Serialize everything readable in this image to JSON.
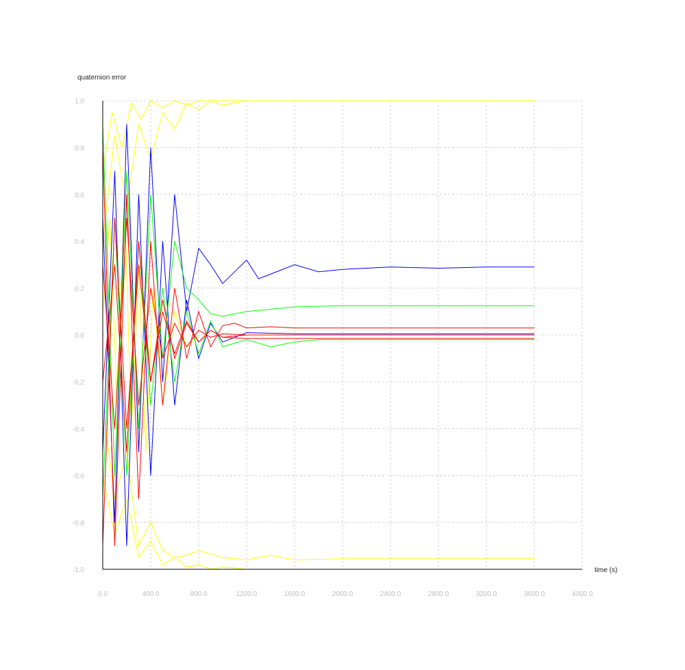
{
  "chart_data": {
    "type": "line",
    "ylabel": "quaternion error",
    "xlabel": "time (s)",
    "xlim": [
      0,
      4000
    ],
    "ylim": [
      -1,
      1
    ],
    "x_ticks": [
      0,
      400,
      800,
      1200,
      1600,
      2000,
      2400,
      2800,
      3200,
      3600,
      4000
    ],
    "x_tick_labels": [
      "0.0",
      "400.0",
      "800.0",
      "1200.0",
      "1600.0",
      "2000.0",
      "2400.0",
      "2800.0",
      "3200.0",
      "3600.0",
      "4000.0"
    ],
    "y_ticks": [
      -1,
      -0.8,
      -0.6,
      -0.4,
      -0.2,
      0,
      0.2,
      0.4,
      0.6,
      0.8,
      1
    ],
    "y_tick_labels": [
      "-1.0",
      "-0.8",
      "-0.6",
      "-0.4",
      "-0.2",
      "0.0",
      "0.2",
      "0.4",
      "0.6",
      "0.8",
      "1.0"
    ],
    "grid": true,
    "legend": "none",
    "colors": {
      "blue": "#0000ff",
      "green": "#00ff00",
      "red": "#ff0000",
      "yellow": "#ffff00"
    },
    "series": [
      {
        "color": "#ffff00",
        "x": [
          0,
          80,
          160,
          240,
          320,
          400,
          500,
          600,
          700,
          800,
          1000,
          1200,
          1600,
          2000,
          3600
        ],
        "y": [
          0.7,
          0.95,
          0.8,
          0.99,
          0.92,
          1.0,
          0.97,
          1.0,
          0.98,
          1.0,
          1.0,
          1.0,
          1.0,
          1.0,
          1.0
        ]
      },
      {
        "color": "#ffff00",
        "x": [
          0,
          100,
          200,
          300,
          400,
          500,
          600,
          700,
          800,
          900,
          1000,
          1200,
          1600,
          2000,
          3600
        ],
        "y": [
          0.4,
          0.85,
          0.55,
          0.9,
          0.75,
          0.95,
          0.88,
          0.99,
          0.96,
          1.0,
          0.98,
          1.0,
          1.0,
          1.0,
          1.0
        ]
      },
      {
        "color": "#ffff00",
        "x": [
          0,
          100,
          200,
          300,
          400,
          500,
          600,
          700,
          800,
          900,
          1000,
          1200,
          1600,
          2000,
          3600
        ],
        "y": [
          -0.6,
          -0.85,
          -0.7,
          -0.95,
          -0.88,
          -0.98,
          -0.95,
          -0.99,
          -0.98,
          -1.0,
          -0.99,
          -1.0,
          -1.0,
          -1.0,
          -1.0
        ]
      },
      {
        "color": "#ffff00",
        "x": [
          0,
          100,
          200,
          300,
          400,
          500,
          600,
          700,
          800,
          1000,
          1200,
          1400,
          1600,
          2000,
          2400,
          3600
        ],
        "y": [
          -0.3,
          -0.7,
          -0.5,
          -0.9,
          -0.8,
          -0.92,
          -0.95,
          -0.94,
          -0.92,
          -0.95,
          -0.96,
          -0.94,
          -0.96,
          -0.955,
          -0.955,
          -0.955
        ]
      },
      {
        "color": "#ffff00",
        "x": [
          0,
          60,
          120,
          180,
          240,
          300,
          360,
          420,
          500,
          600,
          700,
          800
        ],
        "y": [
          0.1,
          0.5,
          -0.3,
          0.6,
          -0.4,
          0.3,
          -0.5,
          0.2,
          -0.3,
          0.1,
          -0.05,
          0.0
        ]
      },
      {
        "color": "#0000ff",
        "x": [
          0,
          100,
          200,
          300,
          400,
          500,
          600,
          700,
          800,
          900,
          1000,
          1100,
          1200,
          1300,
          1400,
          1600,
          1800,
          2000,
          2400,
          2800,
          3200,
          3600
        ],
        "y": [
          0.5,
          -0.8,
          0.9,
          -0.5,
          0.8,
          -0.2,
          0.6,
          0.1,
          0.37,
          0.3,
          0.22,
          0.27,
          0.32,
          0.24,
          0.26,
          0.3,
          0.27,
          0.28,
          0.29,
          0.285,
          0.29,
          0.29
        ]
      },
      {
        "color": "#0000ff",
        "x": [
          0,
          100,
          200,
          300,
          400,
          500,
          600,
          700,
          800,
          900,
          1000,
          1200,
          1600,
          2000,
          3600
        ],
        "y": [
          -0.5,
          0.7,
          -0.9,
          0.6,
          -0.6,
          0.4,
          -0.3,
          0.15,
          -0.1,
          0.05,
          -0.03,
          0.01,
          0.005,
          0.005,
          0.005
        ]
      },
      {
        "color": "#00ff00",
        "x": [
          0,
          100,
          200,
          300,
          400,
          500,
          600,
          700,
          800,
          900,
          1000,
          1200,
          1400,
          1600,
          2000,
          2400,
          3600
        ],
        "y": [
          0.9,
          -0.6,
          0.7,
          -0.4,
          0.6,
          -0.1,
          0.4,
          0.2,
          0.15,
          0.09,
          0.08,
          0.1,
          0.11,
          0.12,
          0.125,
          0.125,
          0.125
        ]
      },
      {
        "color": "#00ff00",
        "x": [
          0,
          100,
          200,
          300,
          400,
          500,
          600,
          700,
          800,
          900,
          1000,
          1200,
          1400,
          1600,
          1800,
          2000,
          2400,
          3600
        ],
        "y": [
          -0.7,
          0.5,
          -0.6,
          0.4,
          -0.3,
          0.2,
          -0.2,
          0.1,
          -0.08,
          0.06,
          -0.05,
          -0.02,
          -0.05,
          -0.03,
          -0.02,
          -0.02,
          -0.02,
          -0.02
        ]
      },
      {
        "color": "#ff0000",
        "x": [
          0,
          100,
          200,
          300,
          400,
          500,
          600,
          700,
          800,
          900,
          1000,
          1100,
          1200,
          1400,
          1600,
          2000,
          2400,
          3600
        ],
        "y": [
          0.8,
          -0.9,
          0.6,
          -0.7,
          0.4,
          -0.3,
          0.2,
          -0.1,
          0.1,
          -0.05,
          0.04,
          0.05,
          0.03,
          0.035,
          0.03,
          0.03,
          0.03,
          0.03
        ]
      },
      {
        "color": "#ff0000",
        "x": [
          0,
          100,
          200,
          300,
          400,
          500,
          600,
          700,
          800,
          900,
          1000,
          1200,
          1600,
          2000,
          3600
        ],
        "y": [
          -0.9,
          0.5,
          -0.4,
          0.3,
          -0.2,
          0.15,
          -0.1,
          0.05,
          -0.03,
          0.02,
          -0.01,
          -0.015,
          -0.015,
          -0.015,
          -0.015
        ]
      },
      {
        "color": "#ff0000",
        "x": [
          0,
          100,
          200,
          300,
          400,
          500,
          600,
          700,
          800,
          900,
          1000,
          1200,
          1600,
          2000,
          3600
        ],
        "y": [
          0.3,
          -0.4,
          0.5,
          -0.3,
          0.2,
          -0.1,
          0.05,
          -0.05,
          0.02,
          -0.01,
          0.005,
          0.0,
          0.0,
          0.0,
          0.0
        ]
      },
      {
        "color": "#ff0000",
        "x": [
          0,
          100,
          200,
          300,
          400,
          500,
          600,
          700,
          800,
          900,
          1000,
          1200,
          1600
        ],
        "y": [
          -0.2,
          0.3,
          -0.5,
          0.4,
          -0.2,
          0.1,
          -0.08,
          0.06,
          -0.03,
          0.02,
          -0.01,
          0.0,
          0.0
        ]
      }
    ]
  }
}
